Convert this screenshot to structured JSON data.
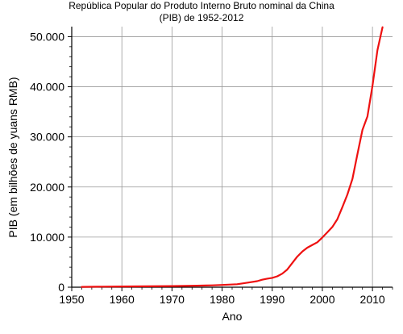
{
  "chart_data": {
    "type": "line",
    "title_line1": "República Popular do Produto Interno Bruto nominal da China",
    "title_line2": "(PIB) de 1952-2012",
    "xlabel": "Ano",
    "ylabel": "PIB (em bilhões de yuans RMB)",
    "xlim": [
      1950,
      2014
    ],
    "ylim": [
      0,
      52000
    ],
    "x_ticks": [
      1950,
      1960,
      1970,
      1980,
      1990,
      2000,
      2010
    ],
    "x_tick_labels": [
      "1950",
      "1960",
      "1970",
      "1980",
      "1990",
      "2000",
      "2010"
    ],
    "y_ticks": [
      0,
      10000,
      20000,
      30000,
      40000,
      50000
    ],
    "y_tick_labels": [
      "0",
      "10.000",
      "20.000",
      "30.000",
      "40.000",
      "50.000"
    ],
    "grid": true,
    "line_color": "#ee1111",
    "series": [
      {
        "x": [
          1952,
          1955,
          1960,
          1965,
          1970,
          1975,
          1978,
          1980,
          1983,
          1985,
          1987,
          1988,
          1989,
          1990,
          1991,
          1992,
          1993,
          1994,
          1995,
          1996,
          1997,
          1998,
          1999,
          2000,
          2001,
          2002,
          2003,
          2004,
          2005,
          2006,
          2007,
          2008,
          2009,
          2010,
          2011,
          2012
        ],
        "y": [
          68,
          91,
          146,
          172,
          225,
          300,
          365,
          455,
          598,
          903,
          1206,
          1504,
          1700,
          1870,
          2180,
          2700,
          3530,
          4820,
          6100,
          7110,
          7890,
          8440,
          8970,
          9920,
          10970,
          12030,
          13580,
          15990,
          18490,
          21630,
          26580,
          31400,
          34090,
          40150,
          47310,
          51890
        ]
      }
    ]
  }
}
